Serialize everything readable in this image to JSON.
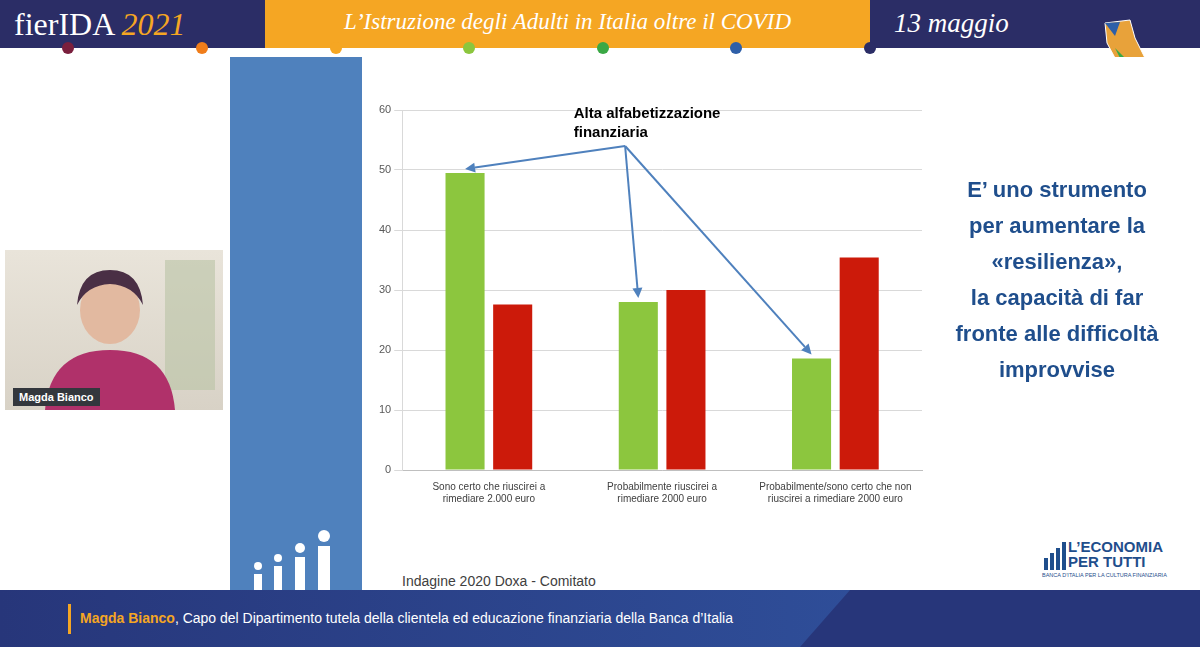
{
  "header": {
    "title": "fierIDA",
    "year": "2021",
    "subtitle": "L’Istruzione degli Adulti in Italia oltre il COVID",
    "date": "13 maggio"
  },
  "speaker_video": {
    "name": "Magda Bianco"
  },
  "slide": {
    "text_lines": [
      "E’ uno strumento",
      "per aumentare la",
      "«resilienza»,",
      "la capacità di far",
      "fronte alle difficoltà",
      "improvvise"
    ],
    "source": "Indagine 2020 Doxa - Comitato",
    "logo": {
      "title_lines": [
        "L’ECONOMIA",
        "PER TUTTI"
      ],
      "subtitle": "BANCA D’ITALIA PER LA CULTURA FINANZIARIA"
    }
  },
  "chart_data": {
    "type": "bar",
    "annotation": "Alta alfabetizzazione finanziaria",
    "categories": [
      "Sono certo che riuscirei a rimediare 2.000 euro",
      "Probabilmente riuscirei a rimediare 2000 euro",
      "Probabilmente/sono certo che non riuscirei a rimediare 2000 euro"
    ],
    "series": [
      {
        "color": "#8cc63e",
        "values": [
          49.5,
          28.0,
          18.6
        ]
      },
      {
        "color": "#cc1a0a",
        "values": [
          27.6,
          30.0,
          35.4
        ]
      }
    ],
    "ylim": [
      0,
      60
    ],
    "yticks": [
      0,
      10,
      20,
      30,
      40,
      50,
      60
    ],
    "grid": true
  },
  "footer": {
    "name": "Magda Bianco",
    "role": ", Capo del Dipartimento tutela della clientela ed educazione finanziaria della Banca d’Italia"
  }
}
